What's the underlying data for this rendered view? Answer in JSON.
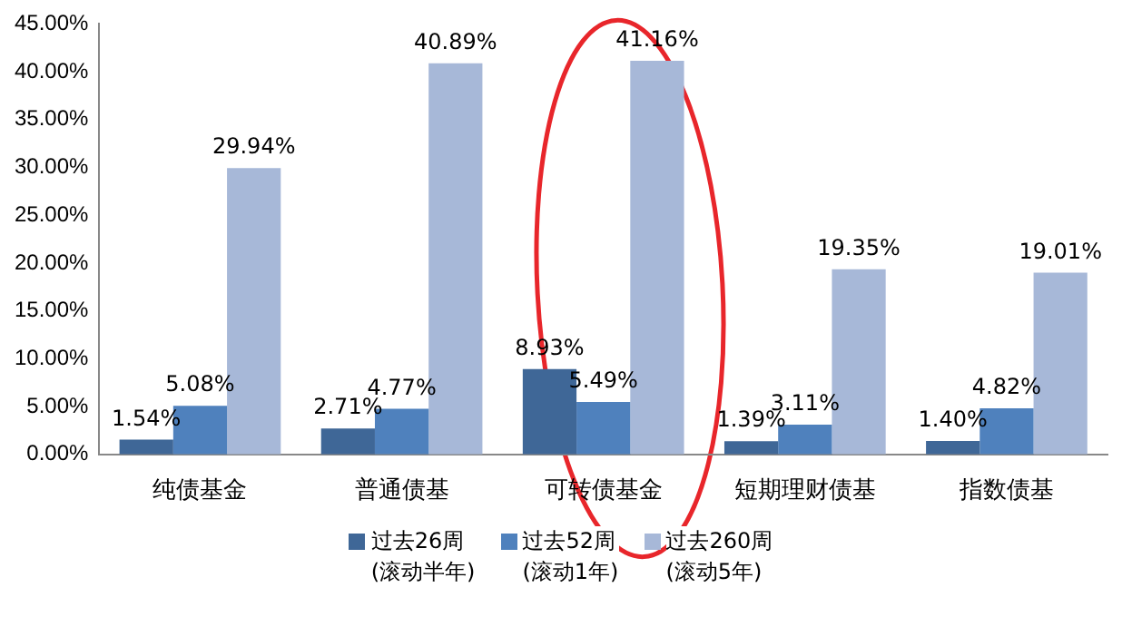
{
  "chart_data": {
    "type": "bar",
    "categories": [
      "纯债基金",
      "普通债基",
      "可转债基金",
      "短期理财债基",
      "指数债基"
    ],
    "series": [
      {
        "name": "过去26周\n(滚动半年)",
        "color": "#3f6797",
        "values": [
          1.54,
          2.71,
          8.93,
          1.39,
          1.4
        ],
        "value_labels": [
          "1.54%",
          "2.71%",
          "8.93%",
          "1.39%",
          "1.40%"
        ]
      },
      {
        "name": "过去52周\n(滚动1年)",
        "color": "#4f81bd",
        "values": [
          5.08,
          4.77,
          5.49,
          3.11,
          4.82
        ],
        "value_labels": [
          "5.08%",
          "4.77%",
          "5.49%",
          "3.11%",
          "4.82%"
        ]
      },
      {
        "name": "过去260周\n(滚动5年)",
        "color": "#a7b8d8",
        "values": [
          29.94,
          40.89,
          41.16,
          19.35,
          19.01
        ],
        "value_labels": [
          "29.94%",
          "40.89%",
          "41.16%",
          "19.35%",
          "19.01%"
        ]
      }
    ],
    "ylim": [
      0,
      45
    ],
    "yticks": [
      {
        "value": 0,
        "label": "0.00%"
      },
      {
        "value": 5,
        "label": "5.00%"
      },
      {
        "value": 10,
        "label": "10.00%"
      },
      {
        "value": 15,
        "label": "15.00%"
      },
      {
        "value": 20,
        "label": "20.00%"
      },
      {
        "value": 25,
        "label": "25.00%"
      },
      {
        "value": 30,
        "label": "30.00%"
      },
      {
        "value": 35,
        "label": "35.00%"
      },
      {
        "value": 40,
        "label": "40.00%"
      },
      {
        "value": 45,
        "label": "45.00%"
      }
    ],
    "grid": false,
    "legend": "bottom"
  }
}
